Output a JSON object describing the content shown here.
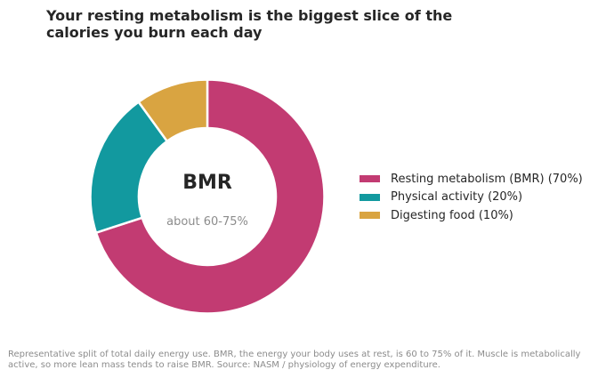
{
  "title": "Your resting metabolism is the biggest slice of the calories you burn each day",
  "caption": "Representative split of total daily energy use. BMR, the energy your body uses at rest, is 60 to 75% of it. Muscle is metabolically active, so more lean mass tends to raise BMR. Source: NASM / physiology of energy expenditure.",
  "chart_data": {
    "type": "pie",
    "style": "donut",
    "categories": [
      "Resting metabolism (BMR)",
      "Physical activity",
      "Digesting food"
    ],
    "values": [
      70,
      20,
      10
    ],
    "colors": [
      "#c23b72",
      "#12999f",
      "#d9a441"
    ],
    "legend_labels": [
      "Resting metabolism (BMR)  (70%)",
      "Physical activity  (20%)",
      "Digesting food  (10%)"
    ],
    "legend_position": "right",
    "center_label": "BMR",
    "center_sublabel": "about 60-75%"
  }
}
